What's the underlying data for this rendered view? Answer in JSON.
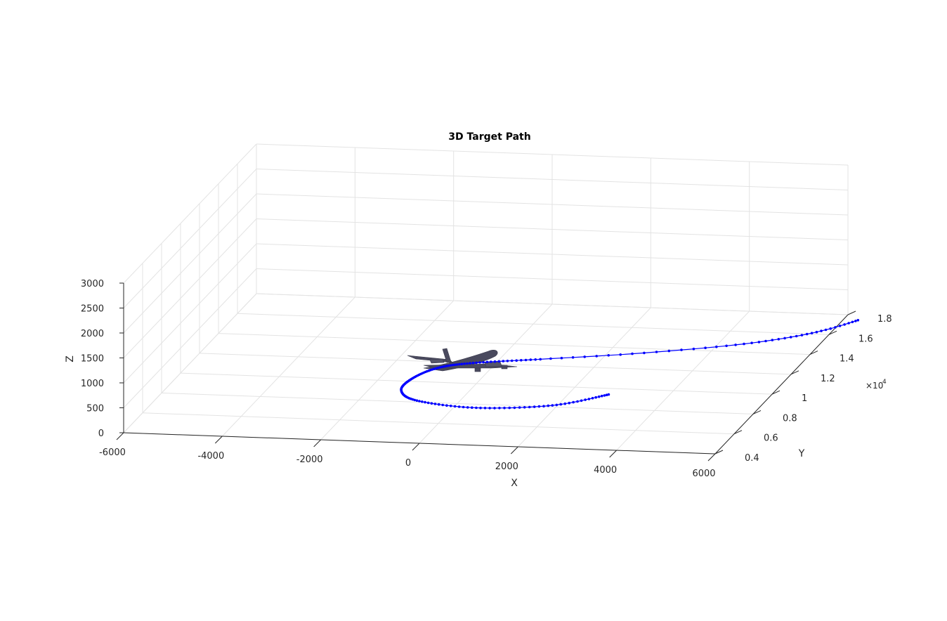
{
  "chart_data": {
    "type": "line3d",
    "title": "3D Target Path",
    "xlabel": "X",
    "ylabel": "Y",
    "zlabel": "Z",
    "xlim": [
      -6000,
      6000
    ],
    "ylim": [
      4000,
      18000
    ],
    "zlim": [
      0,
      3000
    ],
    "x_ticks": [
      -6000,
      -4000,
      -2000,
      0,
      2000,
      4000,
      6000
    ],
    "y_ticks": [
      0.4,
      0.6,
      0.8,
      1,
      1.2,
      1.4,
      1.6,
      1.8
    ],
    "y_tick_labels": [
      "0.4",
      "0.6",
      "0.8",
      "1",
      "1.2",
      "1.4",
      "1.6",
      "1.8"
    ],
    "y_exponent_label": "×10",
    "y_exponent_power": "4",
    "z_ticks": [
      0,
      500,
      1000,
      1500,
      2000,
      2500,
      3000
    ],
    "grid": true,
    "series": [
      {
        "color": "#0000ff",
        "marker": "dot",
        "points_xyz": [
          [
            2800,
            9400,
            0
          ],
          [
            1900,
            8150,
            0
          ],
          [
            450,
            7650,
            0
          ],
          [
            -850,
            8150,
            0
          ],
          [
            -1350,
            9100,
            0
          ],
          [
            -1350,
            10300,
            0
          ],
          [
            -1050,
            11400,
            0
          ],
          [
            -450,
            12000,
            0
          ],
          [
            800,
            12600,
            0
          ],
          [
            2500,
            13450,
            0
          ],
          [
            4200,
            14550,
            0
          ],
          [
            5200,
            15500,
            0
          ],
          [
            5850,
            16450,
            0
          ],
          [
            6300,
            17500,
            0
          ]
        ]
      }
    ],
    "annotation_icon": "airplane-model"
  }
}
